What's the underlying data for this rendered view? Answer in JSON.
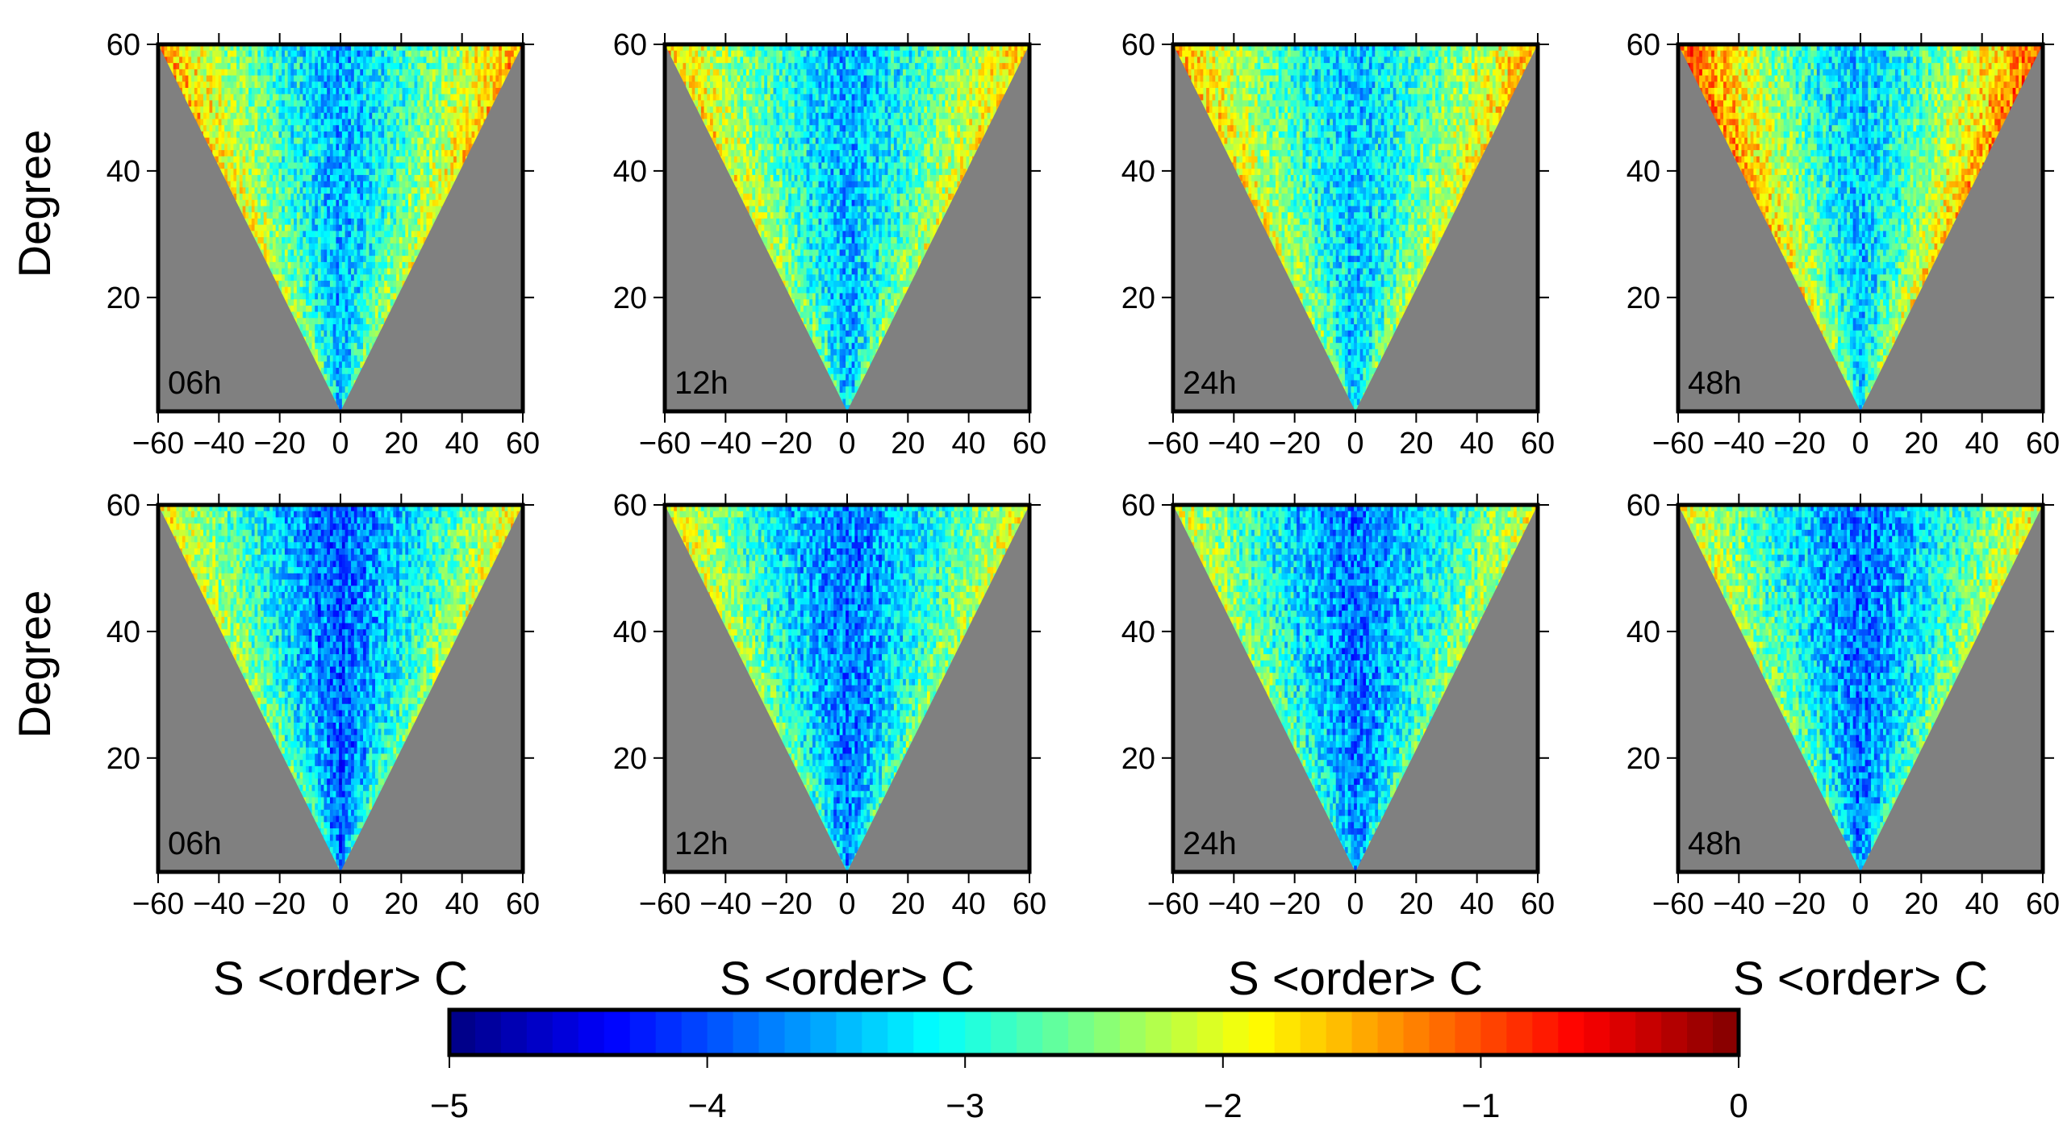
{
  "chart_data": {
    "type": "heatmap",
    "layout": "2 rows x 4 columns of triangular spherical-harmonic coefficient maps",
    "xlabel": "S <order> C",
    "ylabel": "Degree",
    "x_ticks": [
      -60,
      -40,
      -20,
      0,
      20,
      40,
      60
    ],
    "y_ticks": [
      20,
      40,
      60
    ],
    "xlim": [
      -60,
      60
    ],
    "ylim": [
      2,
      60
    ],
    "panels": [
      {
        "row": 1,
        "col": 1,
        "label": "06h",
        "edge_level": -1.4,
        "center_level": -3.5,
        "center_width": 0.35
      },
      {
        "row": 1,
        "col": 2,
        "label": "12h",
        "edge_level": -1.6,
        "center_level": -3.5,
        "center_width": 0.35
      },
      {
        "row": 1,
        "col": 3,
        "label": "24h",
        "edge_level": -1.5,
        "center_level": -3.4,
        "center_width": 0.35
      },
      {
        "row": 1,
        "col": 4,
        "label": "48h",
        "edge_level": -1.0,
        "center_level": -3.4,
        "center_width": 0.3
      },
      {
        "row": 2,
        "col": 1,
        "label": "06h",
        "edge_level": -1.8,
        "center_level": -3.9,
        "center_width": 0.45
      },
      {
        "row": 2,
        "col": 2,
        "label": "12h",
        "edge_level": -1.9,
        "center_level": -3.8,
        "center_width": 0.45
      },
      {
        "row": 2,
        "col": 3,
        "label": "24h",
        "edge_level": -2.0,
        "center_level": -3.8,
        "center_width": 0.45
      },
      {
        "row": 2,
        "col": 4,
        "label": "48h",
        "edge_level": -1.9,
        "center_level": -3.8,
        "center_width": 0.45
      }
    ],
    "colorbar": {
      "min": -5,
      "max": 0,
      "steps": 50,
      "ticks": [
        -5,
        -4,
        -3,
        -2,
        -1,
        0
      ],
      "tick_labels": [
        "−5",
        "−4",
        "−3",
        "−2",
        "−1",
        "0"
      ],
      "colormap": "jet"
    },
    "colors": {
      "masked_background": "#808080",
      "frame": "#000000"
    }
  }
}
